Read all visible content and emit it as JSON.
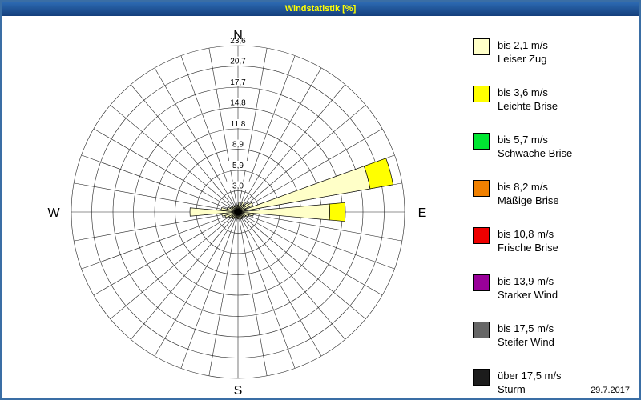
{
  "window": {
    "title": "Windstatistik [%]"
  },
  "footer": {
    "date": "29.7.2017"
  },
  "compass": {
    "north": "N",
    "east": "E",
    "south": "S",
    "west": "W"
  },
  "chart_data": {
    "type": "windrose",
    "units": "%",
    "title": "Windstatistik [%]",
    "sectors": 36,
    "sector_width_deg": 10,
    "rmax": 23.6,
    "rings": [
      3.0,
      5.9,
      8.9,
      11.8,
      14.8,
      17.7,
      20.7,
      23.6
    ],
    "ring_labels": [
      "3,0",
      "5,9",
      "8,9",
      "11,8",
      "14,8",
      "17,7",
      "20,7",
      "23,6"
    ],
    "grid": true,
    "legend_position": "right",
    "classes": [
      {
        "speed": "bis 2,1 m/s",
        "name": "Leiser Zug",
        "color": "#FFFFC8"
      },
      {
        "speed": "bis 3,6 m/s",
        "name": "Leichte Brise",
        "color": "#FFFF00"
      },
      {
        "speed": "bis 5,7 m/s",
        "name": "Schwache Brise",
        "color": "#00E632"
      },
      {
        "speed": "bis 8,2 m/s",
        "name": "Mäßige Brise",
        "color": "#F08000"
      },
      {
        "speed": "bis 10,8 m/s",
        "name": "Frische Brise",
        "color": "#EE0000"
      },
      {
        "speed": "bis 13,9 m/s",
        "name": "Starker Wind",
        "color": "#990099"
      },
      {
        "speed": "bis 17,5 m/s",
        "name": "Steifer Wind",
        "color": "#666666"
      },
      {
        "speed": "über 17,5 m/s",
        "name": "Sturm",
        "color": "#1C1C1C"
      }
    ],
    "bins": [
      {
        "dir": 75,
        "cum": [
          19.0,
          22.3
        ]
      },
      {
        "dir": 90,
        "cum": [
          13.0,
          15.2
        ]
      },
      {
        "dir": 270,
        "cum": [
          6.8
        ]
      },
      {
        "dir": 0,
        "cum": [
          1.0
        ]
      },
      {
        "dir": 10,
        "cum": [
          1.4
        ]
      },
      {
        "dir": 20,
        "cum": [
          1.0
        ]
      },
      {
        "dir": 30,
        "cum": [
          1.6
        ]
      },
      {
        "dir": 40,
        "cum": [
          1.2
        ]
      },
      {
        "dir": 50,
        "cum": [
          1.8
        ]
      },
      {
        "dir": 60,
        "cum": [
          2.3
        ]
      },
      {
        "dir": 100,
        "cum": [
          2.2
        ]
      },
      {
        "dir": 110,
        "cum": [
          1.6
        ]
      },
      {
        "dir": 120,
        "cum": [
          1.2
        ]
      },
      {
        "dir": 130,
        "cum": [
          1.0
        ]
      },
      {
        "dir": 140,
        "cum": [
          0.9
        ]
      },
      {
        "dir": 150,
        "cum": [
          1.1
        ]
      },
      {
        "dir": 160,
        "cum": [
          0.8
        ]
      },
      {
        "dir": 170,
        "cum": [
          0.9
        ]
      },
      {
        "dir": 180,
        "cum": [
          1.0
        ]
      },
      {
        "dir": 190,
        "cum": [
          0.8
        ]
      },
      {
        "dir": 200,
        "cum": [
          1.0
        ]
      },
      {
        "dir": 210,
        "cum": [
          0.9
        ]
      },
      {
        "dir": 220,
        "cum": [
          1.2
        ]
      },
      {
        "dir": 230,
        "cum": [
          1.0
        ]
      },
      {
        "dir": 240,
        "cum": [
          1.4
        ]
      },
      {
        "dir": 250,
        "cum": [
          1.9
        ]
      },
      {
        "dir": 260,
        "cum": [
          2.3
        ]
      },
      {
        "dir": 280,
        "cum": [
          2.4
        ]
      },
      {
        "dir": 290,
        "cum": [
          1.6
        ]
      },
      {
        "dir": 300,
        "cum": [
          1.2
        ]
      },
      {
        "dir": 310,
        "cum": [
          1.0
        ]
      },
      {
        "dir": 320,
        "cum": [
          1.1
        ]
      },
      {
        "dir": 330,
        "cum": [
          0.9
        ]
      },
      {
        "dir": 340,
        "cum": [
          1.0
        ]
      },
      {
        "dir": 350,
        "cum": [
          0.9
        ]
      }
    ]
  }
}
